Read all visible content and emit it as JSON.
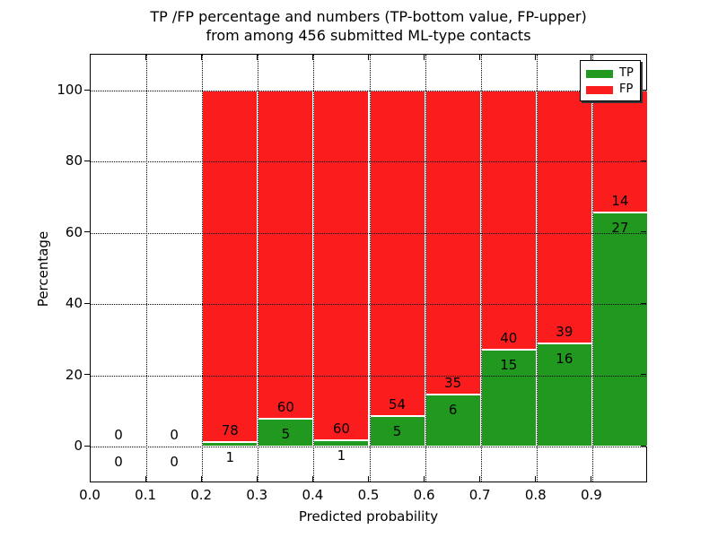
{
  "title": {
    "line1": "TP /FP percentage and numbers (TP-bottom value, FP-upper)",
    "line2": "from among 456 submitted ML-type contacts"
  },
  "axes": {
    "xlabel": "Predicted probability",
    "ylabel": "Percentage",
    "x_ticks": [
      {
        "label": "0.0",
        "value": 0.0
      },
      {
        "label": "0.1",
        "value": 0.1
      },
      {
        "label": "0.2",
        "value": 0.2
      },
      {
        "label": "0.3",
        "value": 0.3
      },
      {
        "label": "0.4",
        "value": 0.4
      },
      {
        "label": "0.5",
        "value": 0.5
      },
      {
        "label": "0.6",
        "value": 0.6
      },
      {
        "label": "0.7",
        "value": 0.7
      },
      {
        "label": "0.8",
        "value": 0.8
      },
      {
        "label": "0.9",
        "value": 0.9
      }
    ],
    "y_ticks": [
      {
        "label": "0",
        "value": 0
      },
      {
        "label": "20",
        "value": 20
      },
      {
        "label": "40",
        "value": 40
      },
      {
        "label": "60",
        "value": 60
      },
      {
        "label": "80",
        "value": 80
      },
      {
        "label": "100",
        "value": 100
      }
    ]
  },
  "legend": {
    "items": [
      {
        "label": "TP",
        "color": "#21991f"
      },
      {
        "label": "FP",
        "color": "#fb1d1d"
      }
    ],
    "position": "upper right"
  },
  "colors": {
    "tp": "#21991f",
    "fp": "#fb1d1d",
    "grid": "#000000",
    "bar_edge": "#ffffff"
  },
  "chart_data": {
    "type": "bar",
    "stacked": true,
    "title": "TP /FP percentage and numbers (TP-bottom value, FP-upper) from among 456 submitted ML-type contacts",
    "xlabel": "Predicted probability",
    "ylabel": "Percentage",
    "xlim": [
      0.0,
      1.0
    ],
    "ylim": [
      -10,
      110
    ],
    "grid": true,
    "legend_position": "upper right",
    "y_unit": "percent of bin total; bars with data are normalized to 100",
    "total_contacts": 456,
    "bins": [
      {
        "range": [
          0.0,
          0.1
        ],
        "tp": 0,
        "fp": 0
      },
      {
        "range": [
          0.1,
          0.2
        ],
        "tp": 0,
        "fp": 0
      },
      {
        "range": [
          0.2,
          0.3
        ],
        "tp": 1,
        "fp": 78
      },
      {
        "range": [
          0.3,
          0.4
        ],
        "tp": 5,
        "fp": 60
      },
      {
        "range": [
          0.4,
          0.5
        ],
        "tp": 1,
        "fp": 60
      },
      {
        "range": [
          0.5,
          0.6
        ],
        "tp": 5,
        "fp": 54
      },
      {
        "range": [
          0.6,
          0.7
        ],
        "tp": 6,
        "fp": 35
      },
      {
        "range": [
          0.7,
          0.8
        ],
        "tp": 15,
        "fp": 40
      },
      {
        "range": [
          0.8,
          0.9
        ],
        "tp": 16,
        "fp": 39
      },
      {
        "range": [
          0.9,
          1.0
        ],
        "tp": 27,
        "fp": 14
      }
    ]
  }
}
